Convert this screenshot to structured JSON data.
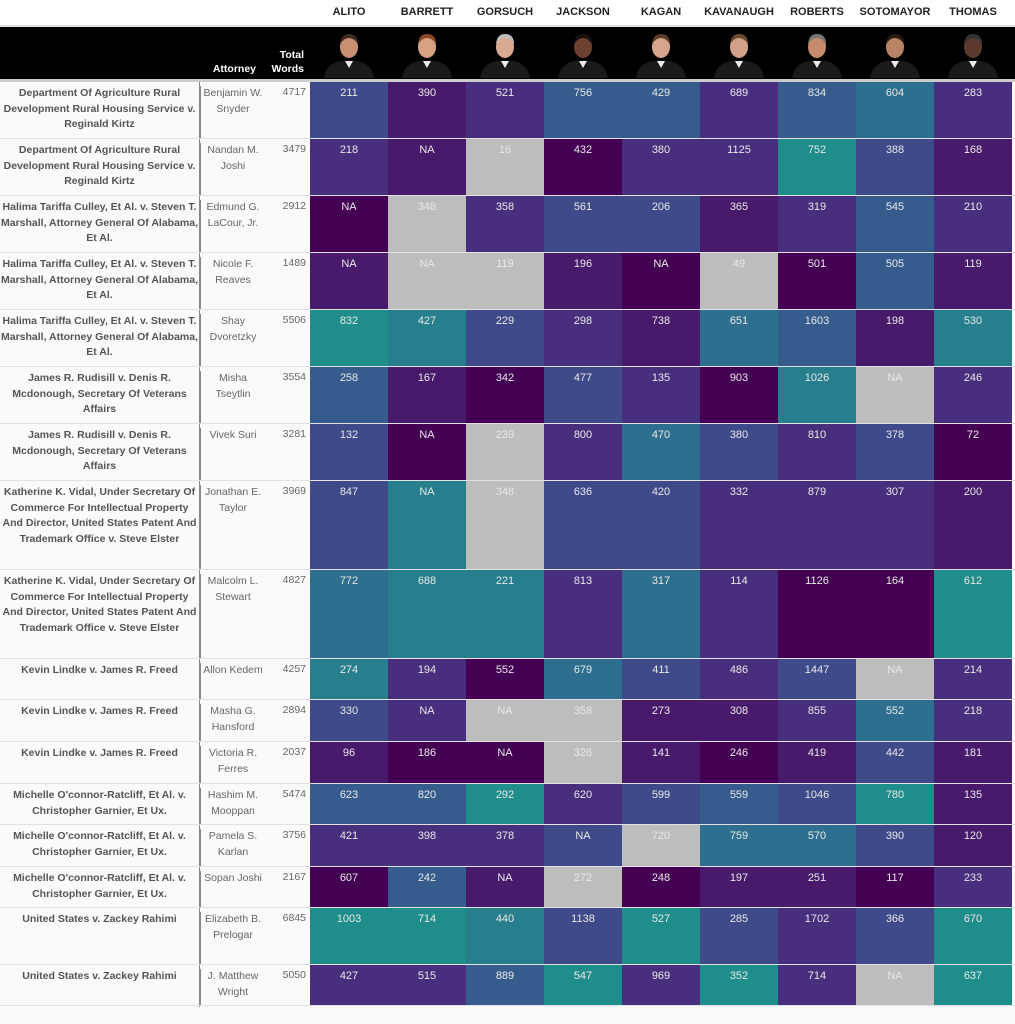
{
  "header": {
    "justices": [
      "ALITO",
      "BARRETT",
      "GORSUCH",
      "JACKSON",
      "KAGAN",
      "KAVANAUGH",
      "ROBERTS",
      "SOTOMAYOR",
      "THOMAS"
    ],
    "attorney_label": "Attorney",
    "total_words_label_1": "Total",
    "total_words_label_2": "Words"
  },
  "colors": {
    "c0": "#440154",
    "c1": "#481a6c",
    "c2": "#472f7d",
    "c3": "#3e4a89",
    "c4": "#365c8d",
    "c5": "#2e6e8e",
    "c6": "#277f8e",
    "c7": "#1f8e8a",
    "na": "#bdbdbd"
  },
  "chart_data": {
    "type": "heatmap",
    "title": "",
    "columns": [
      "ALITO",
      "BARRETT",
      "GORSUCH",
      "JACKSON",
      "KAGAN",
      "KAVANAUGH",
      "ROBERTS",
      "SOTOMAYOR",
      "THOMAS"
    ],
    "rows": [
      {
        "case": "Department Of Agriculture Rural Development Rural Housing Service v. Reginald Kirtz",
        "attorney": "Benjamin W. Snyder",
        "total": "4717",
        "values": [
          "211",
          "390",
          "521",
          "756",
          "429",
          "689",
          "834",
          "604",
          "283"
        ],
        "shade": [
          "c3",
          "c1",
          "c2",
          "c4",
          "c4",
          "c2",
          "c4",
          "c5",
          "c2"
        ]
      },
      {
        "case": "Department Of Agriculture Rural Development Rural Housing Service v. Reginald Kirtz",
        "attorney": "Nandan M. Joshi",
        "total": "3479",
        "values": [
          "218",
          "NA",
          "16",
          "432",
          "380",
          "1125",
          "752",
          "388",
          "168"
        ],
        "shade": [
          "c2",
          "c1",
          "na",
          "c0",
          "c2",
          "c2",
          "c7",
          "c3",
          "c1"
        ]
      },
      {
        "case": "Halima Tariffa Culley, Et Al. v. Steven T. Marshall, Attorney General Of Alabama, Et Al.",
        "attorney": "Edmund G. LaCour, Jr.",
        "total": "2912",
        "values": [
          "NA",
          "348",
          "358",
          "561",
          "206",
          "365",
          "319",
          "545",
          "210"
        ],
        "shade": [
          "c0",
          "na",
          "c2",
          "c3",
          "c3",
          "c1",
          "c2",
          "c4",
          "c2"
        ]
      },
      {
        "case": "Halima Tariffa Culley, Et Al. v. Steven T. Marshall, Attorney General Of Alabama, Et Al.",
        "attorney": "Nicole F. Reaves",
        "total": "1489",
        "values": [
          "NA",
          "NA",
          "119",
          "196",
          "NA",
          "49",
          "501",
          "505",
          "119"
        ],
        "shade": [
          "c1",
          "na",
          "na",
          "c1",
          "c0",
          "na",
          "c0",
          "c4",
          "c1"
        ]
      },
      {
        "case": "Halima Tariffa Culley, Et Al. v. Steven T. Marshall, Attorney General Of Alabama, Et Al.",
        "attorney": "Shay Dvoretzky",
        "total": "5506",
        "values": [
          "832",
          "427",
          "229",
          "298",
          "738",
          "651",
          "1603",
          "198",
          "530"
        ],
        "shade": [
          "c7",
          "c6",
          "c3",
          "c2",
          "c1",
          "c5",
          "c4",
          "c1",
          "c6"
        ]
      },
      {
        "case": "James R. Rudisill v. Denis R. Mcdonough, Secretary Of Veterans Affairs",
        "attorney": "Misha Tseytlin",
        "total": "3554",
        "values": [
          "258",
          "167",
          "342",
          "477",
          "135",
          "903",
          "1026",
          "NA",
          "246"
        ],
        "shade": [
          "c4",
          "c1",
          "c0",
          "c3",
          "c2",
          "c0",
          "c6",
          "na",
          "c2"
        ]
      },
      {
        "case": "James R. Rudisill v. Denis R. Mcdonough, Secretary Of Veterans Affairs",
        "attorney": "Vivek Suri",
        "total": "3281",
        "values": [
          "132",
          "NA",
          "239",
          "800",
          "470",
          "380",
          "810",
          "378",
          "72"
        ],
        "shade": [
          "c3",
          "c0",
          "na",
          "c2",
          "c5",
          "c3",
          "c2",
          "c3",
          "c0"
        ]
      },
      {
        "case": "Katherine K. Vidal, Under Secretary Of Commerce For Intellectual Property And Director, United States Patent And Trademark Office v. Steve Elster",
        "attorney": "Jonathan E. Taylor",
        "total": "3969",
        "values": [
          "847",
          "NA",
          "348",
          "636",
          "420",
          "332",
          "879",
          "307",
          "200"
        ],
        "shade": [
          "c3",
          "c6",
          "na",
          "c3",
          "c3",
          "c2",
          "c2",
          "c2",
          "c1"
        ]
      },
      {
        "case": "Katherine K. Vidal, Under Secretary Of Commerce For Intellectual Property And Director, United States Patent And Trademark Office v. Steve Elster",
        "attorney": "Malcolm L. Stewart",
        "total": "4827",
        "values": [
          "772",
          "688",
          "221",
          "813",
          "317",
          "114",
          "1126",
          "164",
          "612"
        ],
        "shade": [
          "c5",
          "c6",
          "c6",
          "c2",
          "c5",
          "c2",
          "c0",
          "c0",
          "c7"
        ]
      },
      {
        "case": "Kevin Lindke v. James R. Freed",
        "attorney": "Allon Kedem",
        "total": "4257",
        "values": [
          "274",
          "194",
          "552",
          "679",
          "411",
          "486",
          "1447",
          "NA",
          "214"
        ],
        "shade": [
          "c6",
          "c2",
          "c0",
          "c5",
          "c3",
          "c2",
          "c3",
          "na",
          "c2"
        ]
      },
      {
        "case": "Kevin Lindke v. James R. Freed",
        "attorney": "Masha G. Hansford",
        "total": "2894",
        "values": [
          "330",
          "NA",
          "NA",
          "358",
          "273",
          "308",
          "855",
          "552",
          "218"
        ],
        "shade": [
          "c3",
          "c2",
          "na",
          "na",
          "c1",
          "c1",
          "c2",
          "c5",
          "c2"
        ]
      },
      {
        "case": "Kevin Lindke v. James R. Freed",
        "attorney": "Victoria R. Ferres",
        "total": "2037",
        "values": [
          "96",
          "186",
          "NA",
          "326",
          "141",
          "246",
          "419",
          "442",
          "181"
        ],
        "shade": [
          "c1",
          "c0",
          "c0",
          "na",
          "c1",
          "c0",
          "c1",
          "c3",
          "c1"
        ]
      },
      {
        "case": "Michelle O'connor-Ratcliff, Et Al. v. Christopher Garnier, Et Ux.",
        "attorney": "Hashim M. Mooppan",
        "total": "5474",
        "values": [
          "623",
          "820",
          "292",
          "620",
          "599",
          "559",
          "1046",
          "780",
          "135"
        ],
        "shade": [
          "c4",
          "c4",
          "c7",
          "c2",
          "c3",
          "c4",
          "c3",
          "c7",
          "c1"
        ]
      },
      {
        "case": "Michelle O'connor-Ratcliff, Et Al. v. Christopher Garnier, Et Ux.",
        "attorney": "Pamela S. Karlan",
        "total": "3756",
        "values": [
          "421",
          "398",
          "378",
          "NA",
          "720",
          "759",
          "570",
          "390",
          "120"
        ],
        "shade": [
          "c2",
          "c2",
          "c2",
          "c3",
          "na",
          "c5",
          "c5",
          "c3",
          "c1"
        ]
      },
      {
        "case": "Michelle O'connor-Ratcliff, Et Al. v. Christopher Garnier, Et Ux.",
        "attorney": "Sopan Joshi",
        "total": "2167",
        "values": [
          "607",
          "242",
          "NA",
          "272",
          "248",
          "197",
          "251",
          "117",
          "233"
        ],
        "shade": [
          "c0",
          "c4",
          "c1",
          "na",
          "c0",
          "c1",
          "c1",
          "c0",
          "c2"
        ]
      },
      {
        "case": "United States v. Zackey Rahimi",
        "attorney": "Elizabeth B. Prelogar",
        "total": "6845",
        "values": [
          "1003",
          "714",
          "440",
          "1138",
          "527",
          "285",
          "1702",
          "366",
          "670"
        ],
        "shade": [
          "c7",
          "c7",
          "c6",
          "c3",
          "c7",
          "c3",
          "c2",
          "c3",
          "c7"
        ]
      },
      {
        "case": "United States v. Zackey Rahimi",
        "attorney": "J. Matthew Wright",
        "total": "5050",
        "values": [
          "427",
          "515",
          "889",
          "547",
          "969",
          "352",
          "714",
          "NA",
          "637"
        ],
        "shade": [
          "c2",
          "c2",
          "c4",
          "c7",
          "c2",
          "c7",
          "c2",
          "na",
          "c7"
        ]
      }
    ]
  }
}
